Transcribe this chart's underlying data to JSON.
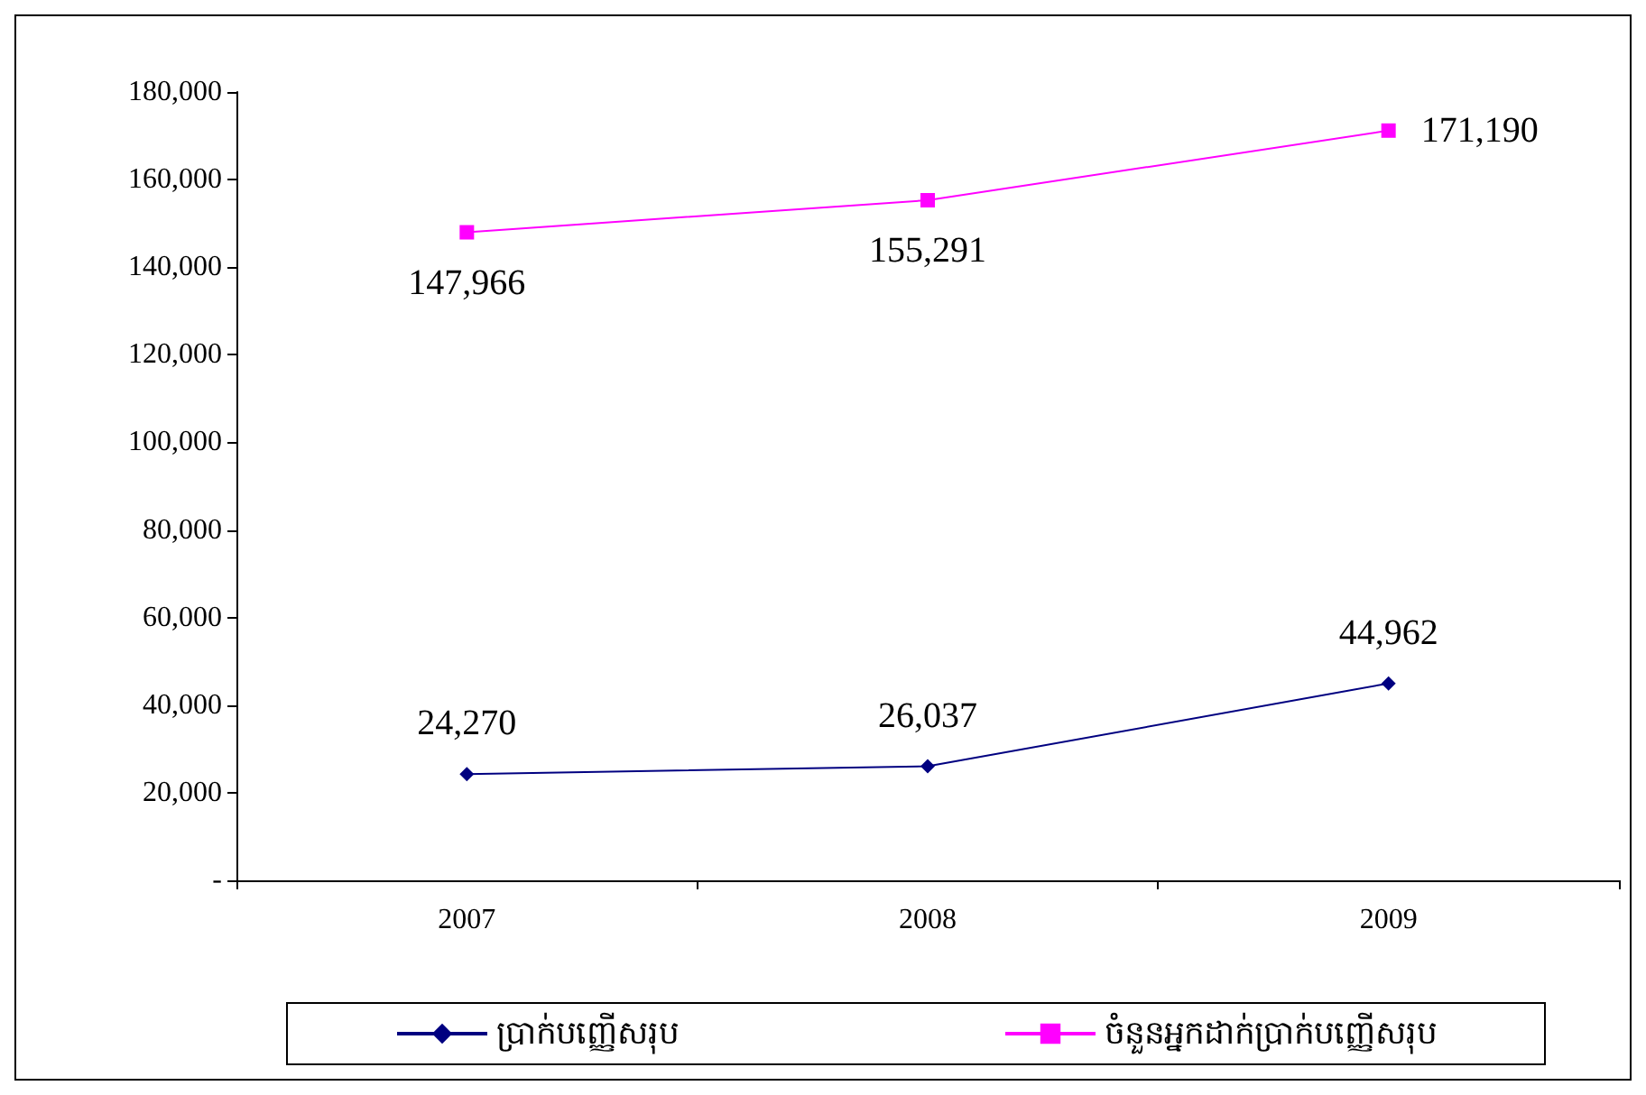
{
  "chart_data": {
    "type": "line",
    "categories": [
      "2007",
      "2008",
      "2009"
    ],
    "series": [
      {
        "name": "ប្រាក់បញ្ញើសរុប",
        "color": "#000080",
        "marker": "diamond",
        "values": [
          24270,
          26037,
          44962
        ],
        "value_labels": [
          "24,270",
          "26,037",
          "44,962"
        ]
      },
      {
        "name": "ចំនួនអ្នកដាក់ប្រាក់បញ្ញើសរុប",
        "color": "#ff00ff",
        "marker": "square",
        "values": [
          147966,
          155291,
          171190
        ],
        "value_labels": [
          "147,966",
          "155,291",
          "171,190"
        ]
      }
    ],
    "ylim": [
      0,
      180000
    ],
    "yticks": [
      {
        "value": 0,
        "label": "-"
      },
      {
        "value": 20000,
        "label": "20,000"
      },
      {
        "value": 40000,
        "label": "40,000"
      },
      {
        "value": 60000,
        "label": "60,000"
      },
      {
        "value": 80000,
        "label": "80,000"
      },
      {
        "value": 100000,
        "label": "100,000"
      },
      {
        "value": 120000,
        "label": "120,000"
      },
      {
        "value": 140000,
        "label": "140,000"
      },
      {
        "value": 160000,
        "label": "160,000"
      },
      {
        "value": 180000,
        "label": "180,000"
      }
    ],
    "grid": false,
    "legend": "bottom"
  }
}
